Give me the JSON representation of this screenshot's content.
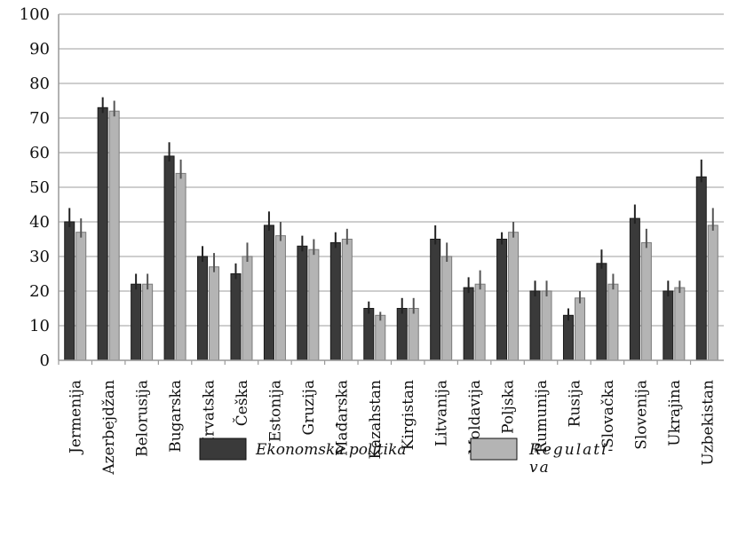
{
  "chart_data": {
    "type": "bar",
    "categories": [
      "Jermenija",
      "Azerbejdžan",
      "Belorusija",
      "Bugarska",
      "Hrvatska",
      "Češka",
      "Estonija",
      "Gruzija",
      "Mađarska",
      "Kazahstan",
      "Kirgistan",
      "Litvanija",
      "Moldavija",
      "Poljska",
      "Rumunija",
      "Rusija",
      "Slovačka",
      "Slovenija",
      "Ukrajina",
      "Uzbekistan"
    ],
    "series": [
      {
        "name": "Ekonomska politika",
        "color": "#3a3a3a",
        "values": [
          40,
          73,
          22,
          59,
          30,
          25,
          39,
          33,
          34,
          15,
          15,
          35,
          21,
          35,
          20,
          13,
          28,
          41,
          20,
          53
        ],
        "error_high": [
          44,
          76,
          25,
          63,
          33,
          28,
          43,
          36,
          37,
          17,
          18,
          39,
          24,
          37,
          23,
          15,
          32,
          45,
          23,
          58
        ]
      },
      {
        "name": "Regulativa",
        "color": "#b4b4b4",
        "values": [
          37,
          72,
          22,
          54,
          27,
          30,
          36,
          32,
          35,
          13,
          15,
          30,
          22,
          37,
          20,
          18,
          22,
          34,
          21,
          39
        ],
        "error_high": [
          41,
          75,
          25,
          58,
          31,
          34,
          40,
          35,
          38,
          14,
          18,
          34,
          26,
          40,
          23,
          20,
          25,
          38,
          23,
          44
        ]
      }
    ],
    "yticks": [
      0,
      10,
      20,
      30,
      40,
      50,
      60,
      70,
      80,
      90,
      100
    ],
    "ylim": [
      0,
      100
    ],
    "grid": true,
    "legend": {
      "position": "bottom",
      "entries": [
        {
          "label": "Ekonomska politika",
          "color": "#3a3a3a"
        },
        {
          "label_lines": [
            "Regulati-",
            "va"
          ],
          "color": "#b4b4b4"
        }
      ]
    },
    "title": "",
    "xlabel": "",
    "ylabel": ""
  }
}
